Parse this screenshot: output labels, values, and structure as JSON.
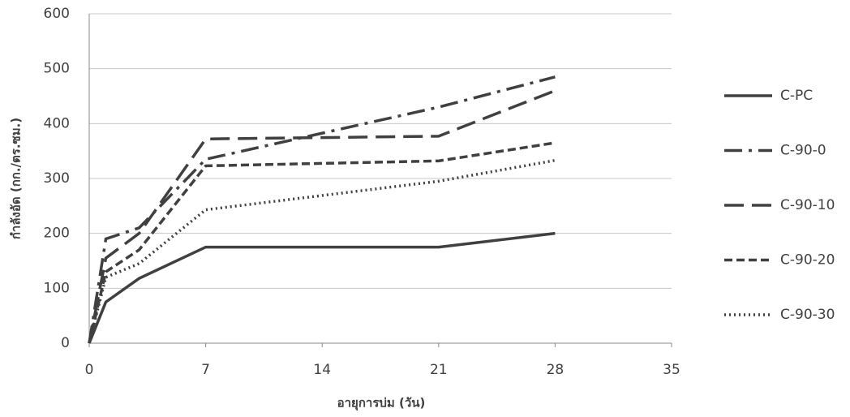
{
  "chart_data": {
    "type": "line",
    "x_label": "อายุการบ่ม (วัน)",
    "y_label": "กำลังอัด (กก./ตร.ซม.)",
    "xlim": [
      0,
      35
    ],
    "xticks": [
      0,
      7,
      14,
      21,
      28,
      35
    ],
    "ylim": [
      0,
      600
    ],
    "yticks": [
      0,
      100,
      200,
      300,
      400,
      500,
      600
    ],
    "grid": true,
    "legend": "right",
    "series": [
      {
        "name": "C-PC",
        "color": "#404040",
        "dash": "solid",
        "x": [
          0,
          1,
          3,
          7,
          21,
          28
        ],
        "values": [
          0,
          75,
          118,
          175,
          175,
          200
        ]
      },
      {
        "name": "C-90-0",
        "color": "#404040",
        "dash": "dashdot",
        "x": [
          0,
          1,
          3,
          7,
          21,
          28
        ],
        "values": [
          0,
          190,
          210,
          335,
          430,
          485
        ]
      },
      {
        "name": "C-90-10",
        "color": "#404040",
        "dash": "longdash",
        "x": [
          0,
          1,
          3,
          7,
          21,
          28
        ],
        "values": [
          0,
          155,
          200,
          372,
          377,
          460
        ]
      },
      {
        "name": "C-90-20",
        "color": "#404040",
        "dash": "dash",
        "x": [
          0,
          1,
          3,
          7,
          21,
          28
        ],
        "values": [
          0,
          130,
          170,
          323,
          332,
          365
        ]
      },
      {
        "name": "C-90-30",
        "color": "#404040",
        "dash": "dot",
        "x": [
          0,
          1,
          3,
          7,
          21,
          28
        ],
        "values": [
          0,
          120,
          145,
          243,
          295,
          333
        ]
      }
    ]
  }
}
